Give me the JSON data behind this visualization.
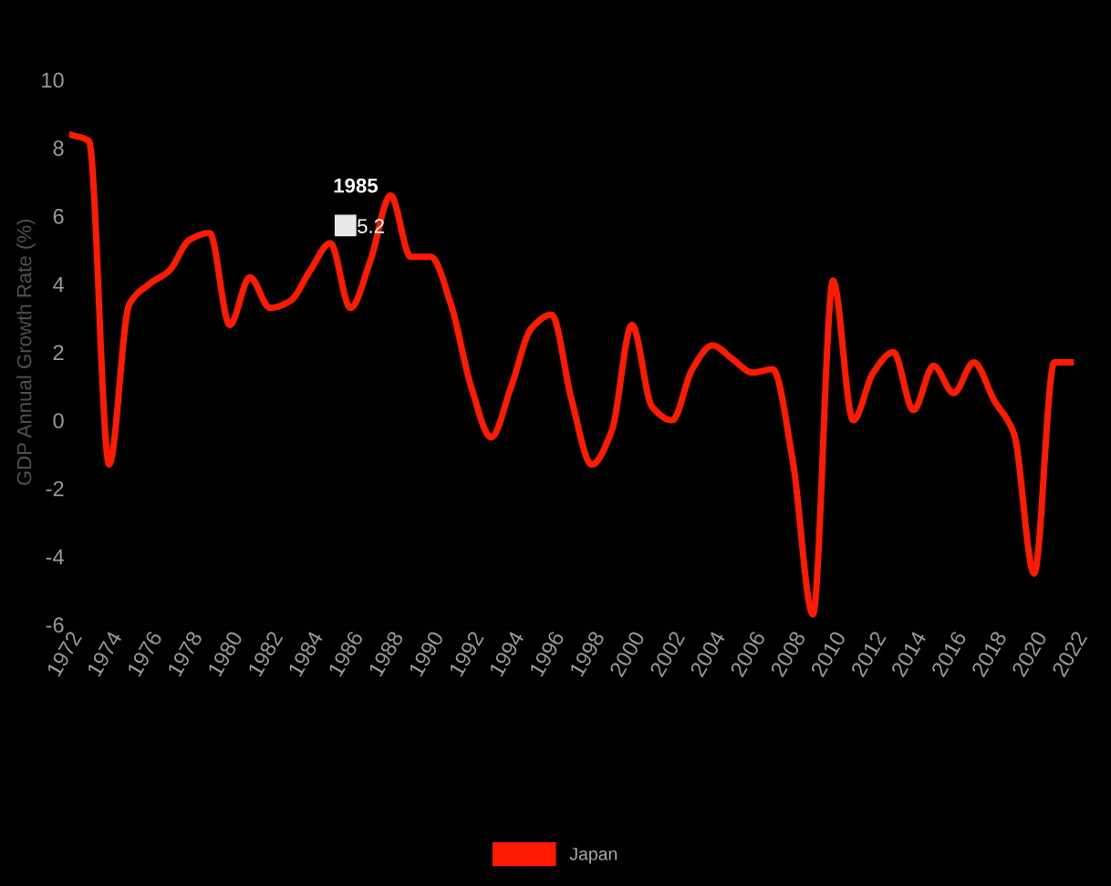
{
  "chart_data": {
    "type": "line",
    "ylabel": "GDP Annual Growth Rate (%)",
    "x": [
      1972,
      1973,
      1974,
      1975,
      1976,
      1977,
      1978,
      1979,
      1980,
      1981,
      1982,
      1983,
      1984,
      1985,
      1986,
      1987,
      1988,
      1989,
      1990,
      1991,
      1992,
      1993,
      1994,
      1995,
      1996,
      1997,
      1998,
      1999,
      2000,
      2001,
      2002,
      2003,
      2004,
      2005,
      2006,
      2007,
      2008,
      2009,
      2010,
      2011,
      2012,
      2013,
      2014,
      2015,
      2016,
      2017,
      2018,
      2019,
      2020,
      2021,
      2022
    ],
    "series": [
      {
        "name": "Japan",
        "color": "#ff1a00",
        "values": [
          8.4,
          8.2,
          -1.3,
          3.4,
          4.0,
          4.4,
          5.3,
          5.5,
          2.8,
          4.2,
          3.3,
          3.5,
          4.4,
          5.2,
          3.3,
          4.7,
          6.6,
          4.8,
          4.8,
          3.4,
          1.0,
          -0.5,
          1.0,
          2.7,
          3.1,
          0.6,
          -1.3,
          -0.3,
          2.8,
          0.4,
          0.0,
          1.5,
          2.2,
          1.8,
          1.4,
          1.5,
          -1.2,
          -5.7,
          4.1,
          0.0,
          1.4,
          2.0,
          0.3,
          1.6,
          0.8,
          1.7,
          0.6,
          -0.4,
          -4.5,
          1.7,
          1.7
        ]
      }
    ],
    "xlim": [
      1972,
      2022
    ],
    "xticks": [
      1972,
      1974,
      1976,
      1978,
      1980,
      1982,
      1984,
      1986,
      1988,
      1990,
      1992,
      1994,
      1996,
      1998,
      2000,
      2002,
      2004,
      2006,
      2008,
      2010,
      2012,
      2014,
      2016,
      2018,
      2020,
      2022
    ],
    "ylim": [
      -6,
      10
    ],
    "yticks": [
      -6,
      -4,
      -2,
      0,
      2,
      4,
      6,
      8,
      10
    ],
    "annotations": [
      {
        "text": "1985",
        "x": 1985,
        "y": 5.2
      },
      {
        "text": "5.2",
        "x": 1985,
        "y": 5.2
      }
    ],
    "grid": false,
    "legend": "bottom",
    "marker": "none",
    "line_style": "solid"
  }
}
